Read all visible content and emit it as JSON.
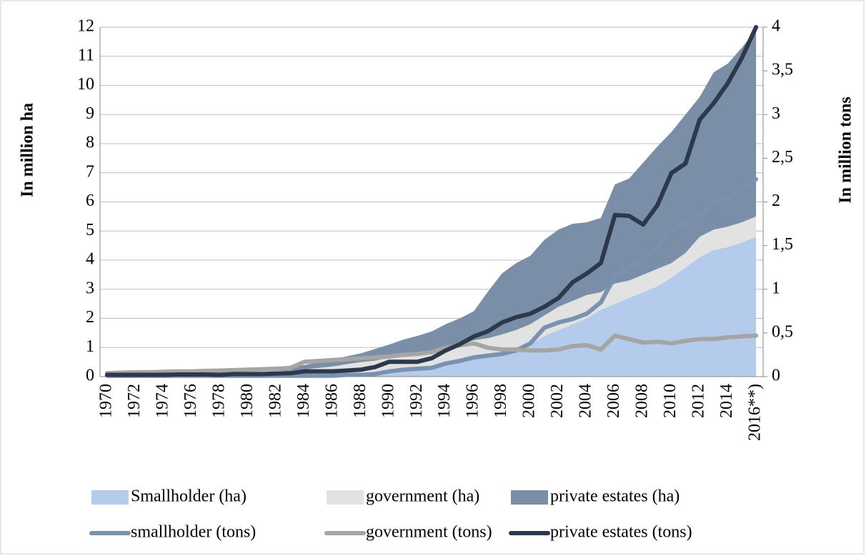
{
  "chart_data": {
    "type": "area",
    "categories": [
      "1970",
      null,
      "1972",
      null,
      "1974",
      null,
      "1976",
      null,
      "1978",
      null,
      "1980",
      null,
      "1982",
      null,
      "1984",
      null,
      "1986",
      null,
      "1988",
      null,
      "1990",
      null,
      "1992",
      null,
      "1994",
      null,
      "1996",
      null,
      "1998",
      null,
      "2000",
      null,
      "2002",
      null,
      "2004",
      null,
      "2006",
      null,
      "2008",
      null,
      "2010",
      null,
      "2012",
      null,
      "2014",
      null,
      "2016**)"
    ],
    "y_label": "In million ha",
    "y2_label": "In million tons",
    "ylim": [
      0,
      12
    ],
    "yticks": [
      0,
      1,
      2,
      3,
      4,
      5,
      6,
      7,
      8,
      9,
      10,
      11,
      12
    ],
    "y2lim": [
      0,
      4
    ],
    "y2ticks": [
      0,
      {
        "value": 0.5,
        "label": "0,5"
      },
      1,
      {
        "value": 1.5,
        "label": "1,5"
      },
      2,
      {
        "value": 2.5,
        "label": "2,5"
      },
      3,
      {
        "value": 3.5,
        "label": "3,5"
      },
      4
    ],
    "grid": true,
    "legend": "bottom",
    "series": [
      {
        "name": "Smallholder (ha)",
        "type": "area",
        "color": "#b4cbeb",
        "values": [
          0.02,
          0.02,
          0.02,
          0.03,
          0.03,
          0.03,
          0.03,
          0.03,
          0.04,
          0.04,
          0.04,
          0.05,
          0.05,
          0.05,
          0.05,
          0.05,
          0.05,
          0.08,
          0.1,
          0.15,
          0.2,
          0.22,
          0.25,
          0.3,
          0.45,
          0.55,
          0.65,
          0.72,
          0.8,
          0.9,
          1.1,
          1.4,
          1.6,
          1.8,
          2.0,
          2.3,
          2.5,
          2.7,
          2.9,
          3.1,
          3.4,
          3.75,
          4.1,
          4.35,
          4.45,
          4.6,
          4.8
        ]
      },
      {
        "name": "government (ha)",
        "type": "area",
        "color": "#e2e2e2",
        "values": [
          0.08,
          0.09,
          0.09,
          0.1,
          0.1,
          0.1,
          0.11,
          0.11,
          0.12,
          0.12,
          0.13,
          0.13,
          0.14,
          0.15,
          0.2,
          0.25,
          0.3,
          0.35,
          0.4,
          0.4,
          0.45,
          0.5,
          0.5,
          0.5,
          0.5,
          0.55,
          0.6,
          0.6,
          0.65,
          0.7,
          0.7,
          0.7,
          0.8,
          0.8,
          0.8,
          0.6,
          0.7,
          0.6,
          0.6,
          0.6,
          0.5,
          0.5,
          0.7,
          0.7,
          0.7,
          0.7,
          0.7
        ]
      },
      {
        "name": "private estates (ha)",
        "type": "area",
        "color": "#7a8ea8",
        "values": [
          0.05,
          0.05,
          0.06,
          0.06,
          0.07,
          0.07,
          0.07,
          0.08,
          0.08,
          0.09,
          0.1,
          0.1,
          0.12,
          0.13,
          0.15,
          0.2,
          0.25,
          0.27,
          0.3,
          0.4,
          0.45,
          0.55,
          0.65,
          0.75,
          0.85,
          0.9,
          1.0,
          1.6,
          2.1,
          2.3,
          2.35,
          2.6,
          2.65,
          2.65,
          2.5,
          2.55,
          3.4,
          3.5,
          3.85,
          4.2,
          4.5,
          4.75,
          4.8,
          5.4,
          5.6,
          6.0,
          6.4
        ]
      },
      {
        "name": "smallholder (tons)",
        "type": "line",
        "axis": "y2",
        "color": "#7b91b0",
        "values": [
          0.01,
          0.01,
          0.01,
          0.01,
          0.01,
          0.01,
          0.01,
          0.01,
          0.01,
          0.01,
          0.01,
          0.01,
          0.01,
          0.01,
          0.01,
          0.01,
          0.01,
          0.02,
          0.02,
          0.03,
          0.06,
          0.08,
          0.09,
          0.1,
          0.15,
          0.18,
          0.22,
          0.24,
          0.26,
          0.3,
          0.38,
          0.56,
          0.62,
          0.66,
          0.72,
          0.85,
          1.15,
          1.25,
          1.35,
          1.48,
          1.68,
          1.75,
          1.85,
          1.98,
          2.05,
          2.15,
          2.26
        ]
      },
      {
        "name": "government (tons)",
        "type": "line",
        "axis": "y2",
        "color": "#a5a5a5",
        "values": [
          0.04,
          0.045,
          0.05,
          0.05,
          0.055,
          0.06,
          0.06,
          0.065,
          0.07,
          0.075,
          0.08,
          0.085,
          0.09,
          0.1,
          0.17,
          0.18,
          0.19,
          0.2,
          0.21,
          0.22,
          0.23,
          0.25,
          0.26,
          0.28,
          0.33,
          0.36,
          0.38,
          0.33,
          0.31,
          0.31,
          0.3,
          0.3,
          0.31,
          0.35,
          0.36,
          0.31,
          0.47,
          0.43,
          0.39,
          0.4,
          0.38,
          0.41,
          0.43,
          0.43,
          0.45,
          0.46,
          0.47
        ]
      },
      {
        "name": "private estates (tons)",
        "type": "line",
        "axis": "y2",
        "color": "#2c384c",
        "values": [
          0.02,
          0.02,
          0.02,
          0.02,
          0.02,
          0.025,
          0.025,
          0.025,
          0.02,
          0.03,
          0.03,
          0.03,
          0.035,
          0.04,
          0.06,
          0.06,
          0.06,
          0.07,
          0.08,
          0.11,
          0.17,
          0.17,
          0.17,
          0.21,
          0.3,
          0.37,
          0.46,
          0.52,
          0.62,
          0.68,
          0.72,
          0.8,
          0.9,
          1.08,
          1.18,
          1.3,
          1.85,
          1.84,
          1.74,
          1.96,
          2.33,
          2.44,
          2.94,
          3.13,
          3.36,
          3.65,
          4.0
        ]
      }
    ]
  }
}
